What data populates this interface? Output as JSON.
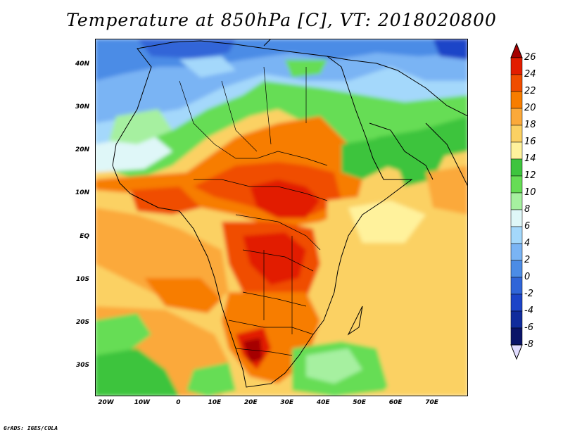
{
  "title": "Temperature at 850hPa [C], VT: 2018020800",
  "credit": "GrADS: IGES/COLA",
  "map": {
    "lon_range": [
      -23,
      80
    ],
    "lat_range": [
      -37,
      46
    ],
    "lat_ticks": [
      {
        "value": 40,
        "label": "40N"
      },
      {
        "value": 30,
        "label": "30N"
      },
      {
        "value": 20,
        "label": "20N"
      },
      {
        "value": 10,
        "label": "10N"
      },
      {
        "value": 0,
        "label": "EQ"
      },
      {
        "value": -10,
        "label": "10S"
      },
      {
        "value": -20,
        "label": "20S"
      },
      {
        "value": -30,
        "label": "30S"
      }
    ],
    "lon_ticks": [
      {
        "value": -20,
        "label": "20W"
      },
      {
        "value": -10,
        "label": "10W"
      },
      {
        "value": 0,
        "label": "0"
      },
      {
        "value": 10,
        "label": "10E"
      },
      {
        "value": 20,
        "label": "20E"
      },
      {
        "value": 30,
        "label": "30E"
      },
      {
        "value": 40,
        "label": "40E"
      },
      {
        "value": 50,
        "label": "50E"
      },
      {
        "value": 60,
        "label": "60E"
      },
      {
        "value": 70,
        "label": "70E"
      }
    ]
  },
  "colorbar": {
    "labels": [
      "26",
      "24",
      "22",
      "20",
      "18",
      "16",
      "14",
      "12",
      "10",
      "8",
      "6",
      "4",
      "2",
      "0",
      "-2",
      "-4",
      "-6",
      "-8"
    ],
    "colors": [
      "#a50000",
      "#e21d00",
      "#f04d00",
      "#f77d00",
      "#fba93a",
      "#fbd163",
      "#fff29c",
      "#3ec43e",
      "#66dd55",
      "#a6f0a0",
      "#dff7f8",
      "#a4d8fb",
      "#7ab4f4",
      "#4c8ce6",
      "#3065d8",
      "#1c44c8",
      "#102c9c",
      "#0a1468",
      "#e1dcff"
    ]
  }
}
